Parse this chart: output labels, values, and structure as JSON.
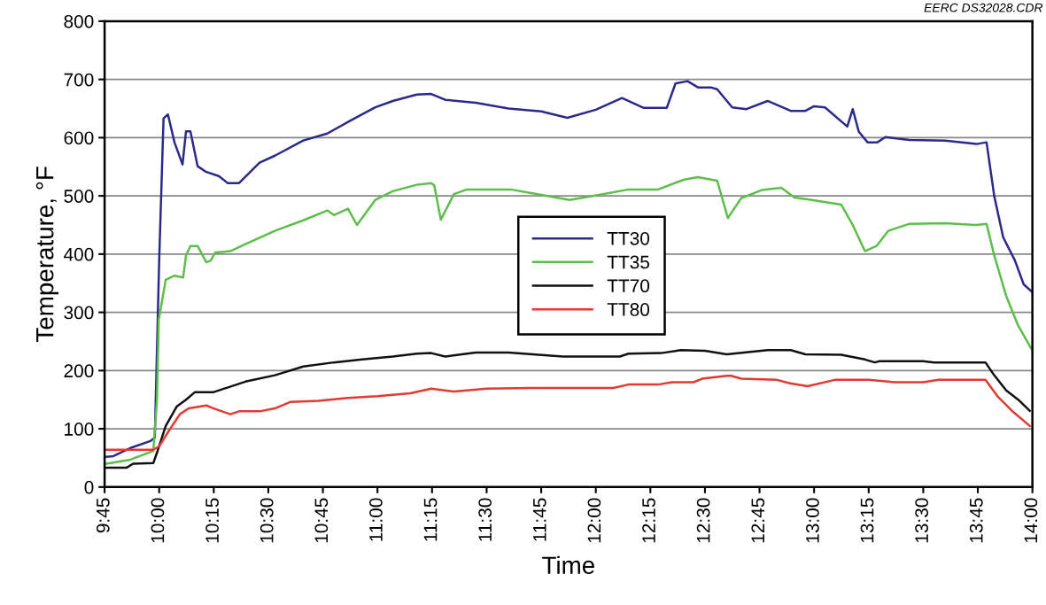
{
  "chart_data": {
    "type": "line",
    "xlabel": "Time",
    "ylabel": "Temperature, °F",
    "annotations": [
      "EERC DS32028.CDR"
    ],
    "xlim": [
      9.75,
      14
    ],
    "xticks": [
      {
        "value": 9.75,
        "label": "9:45"
      },
      {
        "value": 10,
        "label": "10:00"
      },
      {
        "value": 10.25,
        "label": "10:15"
      },
      {
        "value": 10.5,
        "label": "10:30"
      },
      {
        "value": 10.75,
        "label": "10:45"
      },
      {
        "value": 11,
        "label": "11:00"
      },
      {
        "value": 11.25,
        "label": "11:15"
      },
      {
        "value": 11.5,
        "label": "11:30"
      },
      {
        "value": 11.75,
        "label": "11:45"
      },
      {
        "value": 12,
        "label": "12:00"
      },
      {
        "value": 12.25,
        "label": "12:15"
      },
      {
        "value": 12.5,
        "label": "12:30"
      },
      {
        "value": 12.75,
        "label": "12:45"
      },
      {
        "value": 13,
        "label": "13:00"
      },
      {
        "value": 13.25,
        "label": "13:15"
      },
      {
        "value": 13.5,
        "label": "13:30"
      },
      {
        "value": 13.75,
        "label": "13:45"
      },
      {
        "value": 14,
        "label": "14:00"
      }
    ],
    "ylim": [
      0,
      800
    ],
    "yticks": [
      0,
      100,
      200,
      300,
      400,
      500,
      600,
      700,
      800
    ],
    "grid": "y",
    "legend": "center",
    "line_style": "solid",
    "marker": "none",
    "series": [
      {
        "name": "TT30",
        "color": "#2b2a8c",
        "x": [
          9.758,
          9.79,
          9.868,
          9.96,
          9.98,
          10.0,
          10.02,
          10.04,
          10.07,
          10.107,
          10.123,
          10.143,
          10.176,
          10.216,
          10.273,
          10.314,
          10.366,
          10.46,
          10.53,
          10.66,
          10.77,
          10.88,
          10.99,
          11.07,
          11.18,
          11.246,
          11.31,
          11.45,
          11.6,
          11.75,
          11.87,
          12.0,
          12.12,
          12.22,
          12.325,
          12.365,
          12.42,
          12.47,
          12.53,
          12.556,
          12.625,
          12.69,
          12.787,
          12.893,
          12.96,
          13.0,
          13.05,
          13.152,
          13.177,
          13.205,
          13.245,
          13.29,
          13.327,
          13.436,
          13.6,
          13.744,
          13.79,
          13.825,
          13.866,
          13.92,
          13.96,
          13.996
        ],
        "values": [
          52,
          53,
          67,
          79,
          85,
          389,
          633,
          640,
          592,
          554,
          611,
          611,
          551,
          541,
          534,
          522,
          522,
          557,
          569,
          595,
          607,
          630,
          652,
          663,
          674,
          675,
          665,
          660,
          650,
          645,
          634,
          648,
          668,
          651,
          651,
          693,
          697,
          686,
          686,
          683,
          652,
          649,
          663,
          646,
          646,
          654,
          652,
          619,
          649,
          610,
          592,
          592,
          601,
          596,
          595,
          589,
          592,
          500,
          429,
          389,
          348,
          336
        ]
      },
      {
        "name": "TT35",
        "color": "#5cbf4a",
        "x": [
          9.758,
          9.868,
          9.973,
          9.99,
          9.998,
          10.03,
          10.07,
          10.11,
          10.123,
          10.143,
          10.176,
          10.216,
          10.236,
          10.257,
          10.326,
          10.395,
          10.53,
          10.66,
          10.77,
          10.8,
          10.865,
          10.906,
          10.99,
          11.07,
          11.18,
          11.246,
          11.26,
          11.29,
          11.35,
          11.41,
          11.61,
          11.745,
          11.88,
          12.02,
          12.15,
          12.285,
          12.405,
          12.467,
          12.556,
          12.605,
          12.666,
          12.76,
          12.85,
          12.91,
          12.99,
          13.124,
          13.177,
          13.233,
          13.286,
          13.34,
          13.436,
          13.6,
          13.74,
          13.79,
          13.825,
          13.88,
          13.935,
          13.996
        ],
        "values": [
          40,
          47,
          62,
          150,
          287,
          356,
          363,
          360,
          398,
          414,
          414,
          386,
          389,
          403,
          405,
          417,
          440,
          458,
          475,
          467,
          478,
          450,
          493,
          508,
          519,
          522,
          518,
          459,
          503,
          511,
          511,
          502,
          493,
          502,
          511,
          511,
          528,
          532,
          526,
          462,
          496,
          510,
          514,
          497,
          493,
          485,
          450,
          405,
          414,
          440,
          452,
          453,
          450,
          452,
          398,
          328,
          277,
          237
        ]
      },
      {
        "name": "TT70",
        "color": "#111111",
        "x": [
          9.758,
          9.85,
          9.88,
          9.973,
          9.99,
          10.03,
          10.08,
          10.123,
          10.164,
          10.25,
          10.395,
          10.53,
          10.66,
          10.8,
          10.93,
          11.07,
          11.18,
          11.246,
          11.31,
          11.45,
          11.6,
          11.85,
          12.11,
          12.15,
          12.3,
          12.39,
          12.5,
          12.6,
          12.787,
          12.893,
          12.96,
          13.124,
          13.233,
          13.278,
          13.3,
          13.5,
          13.55,
          13.785,
          13.825,
          13.88,
          13.935,
          13.988
        ],
        "values": [
          33,
          33,
          40,
          41,
          59,
          105,
          138,
          150,
          163,
          163,
          181,
          192,
          207,
          214,
          219,
          224,
          229,
          230,
          224,
          231,
          231,
          224,
          224,
          229,
          230,
          235,
          234,
          228,
          235,
          235,
          228,
          227,
          219,
          214,
          216,
          216,
          214,
          214,
          192,
          166,
          150,
          131
        ]
      },
      {
        "name": "TT80",
        "color": "#e03a33",
        "x": [
          9.758,
          9.973,
          10.0,
          10.04,
          10.095,
          10.135,
          10.216,
          10.25,
          10.326,
          10.366,
          10.46,
          10.53,
          10.6,
          10.73,
          10.865,
          11.0,
          11.15,
          11.246,
          11.35,
          11.5,
          11.7,
          12.08,
          12.15,
          12.285,
          12.35,
          12.447,
          12.487,
          12.6,
          12.62,
          12.666,
          12.83,
          12.89,
          12.97,
          13.095,
          13.25,
          13.37,
          13.5,
          13.57,
          13.785,
          13.84,
          13.906,
          13.988
        ],
        "values": [
          64,
          64,
          70,
          94,
          125,
          135,
          140,
          135,
          125,
          130,
          130,
          135,
          146,
          148,
          153,
          156,
          161,
          169,
          164,
          169,
          170,
          170,
          176,
          176,
          180,
          180,
          186,
          191,
          191,
          186,
          184,
          178,
          173,
          184,
          184,
          180,
          180,
          184,
          184,
          156,
          131,
          105
        ]
      }
    ]
  }
}
